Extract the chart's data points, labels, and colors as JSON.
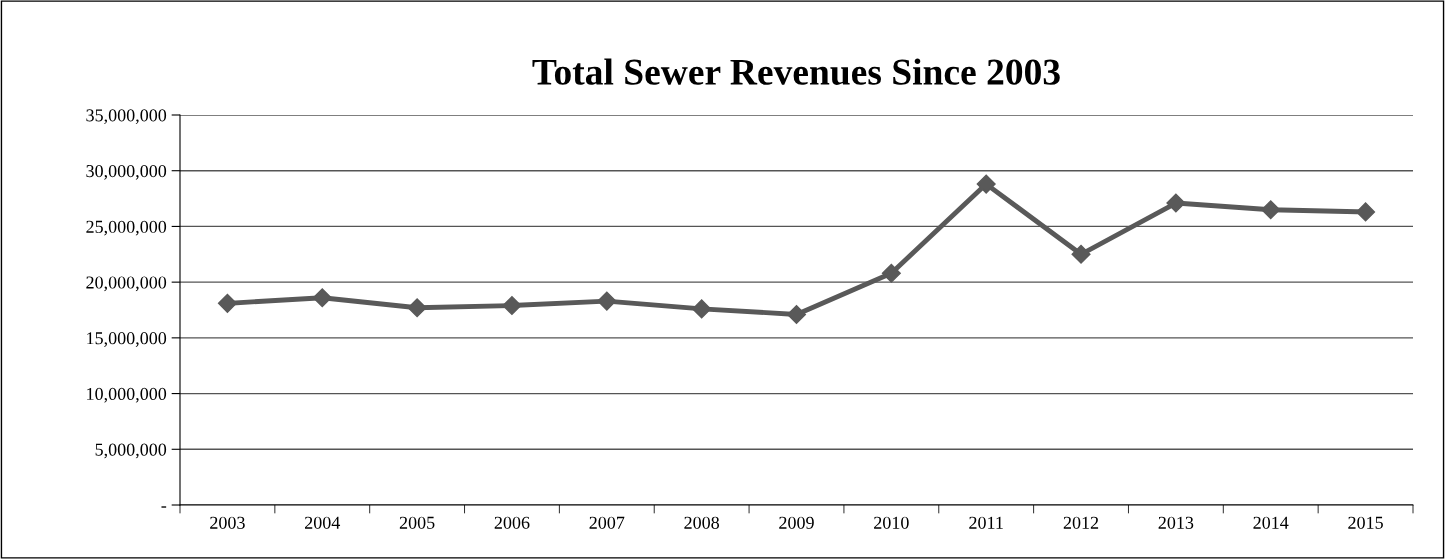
{
  "chart_data": {
    "type": "line",
    "title": "Total Sewer Revenues Since 2003",
    "categories": [
      "2003",
      "2004",
      "2005",
      "2006",
      "2007",
      "2008",
      "2009",
      "2010",
      "2011",
      "2012",
      "2013",
      "2014",
      "2015"
    ],
    "series": [
      {
        "color": "#595959",
        "values": [
          18100000,
          18600000,
          17700000,
          17900000,
          18300000,
          17600000,
          17100000,
          20800000,
          28800000,
          22500000,
          27100000,
          26500000,
          26300000
        ]
      }
    ],
    "ylim": [
      0,
      35000000
    ],
    "yticks": [
      {
        "value": 0,
        "label": "-"
      },
      {
        "value": 5000000,
        "label": "5,000,000"
      },
      {
        "value": 10000000,
        "label": "10,000,000"
      },
      {
        "value": 15000000,
        "label": "15,000,000"
      },
      {
        "value": 20000000,
        "label": "20,000,000"
      },
      {
        "value": 25000000,
        "label": "25,000,000"
      },
      {
        "value": 30000000,
        "label": "30,000,000"
      },
      {
        "value": 35000000,
        "label": "35,000,000"
      }
    ],
    "grid": "y",
    "marker": "diamond",
    "line_style": "solid"
  }
}
